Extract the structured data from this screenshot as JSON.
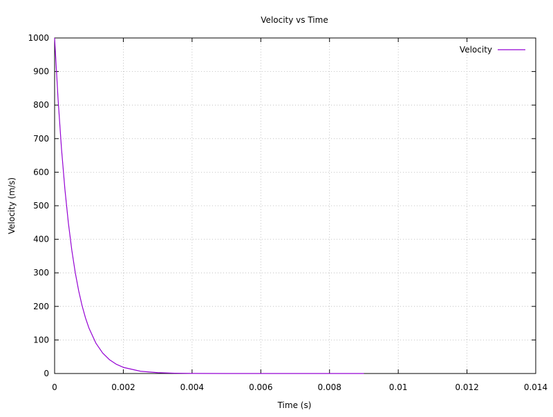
{
  "chart_data": {
    "type": "line",
    "title": "Velocity vs Time",
    "xlabel": "Time (s)",
    "ylabel": "Velocity (m/s)",
    "xlim": [
      0,
      0.014
    ],
    "ylim": [
      0,
      1000
    ],
    "x_ticks": [
      "0",
      "0.002",
      "0.004",
      "0.006",
      "0.008",
      "0.01",
      "0.012",
      "0.014"
    ],
    "y_ticks": [
      "0",
      "100",
      "200",
      "300",
      "400",
      "500",
      "600",
      "700",
      "800",
      "900",
      "1000"
    ],
    "grid": true,
    "legend_position": "top-right",
    "series": [
      {
        "name": "Velocity",
        "color": "#9400d3",
        "x": [
          0,
          0.0001,
          0.0002,
          0.0003,
          0.0004,
          0.0005,
          0.0006,
          0.0007,
          0.0008,
          0.0009,
          0.001,
          0.0012,
          0.0014,
          0.0016,
          0.0018,
          0.002,
          0.0025,
          0.003,
          0.0035,
          0.004,
          0.005,
          0.006,
          0.007,
          0.008,
          0.009
        ],
        "y": [
          1000,
          818.7,
          670.3,
          548.8,
          449.3,
          367.9,
          301.2,
          246.6,
          201.9,
          165.3,
          135.3,
          90.7,
          60.8,
          40.8,
          27.3,
          18.3,
          6.7,
          2.5,
          0.9,
          0.3,
          0.05,
          0.01,
          0,
          0,
          0
        ]
      }
    ]
  }
}
